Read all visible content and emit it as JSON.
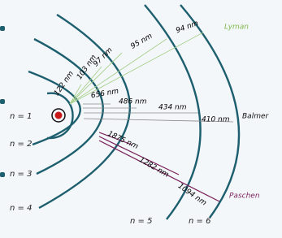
{
  "levels": [
    "n = 1",
    "n = 2",
    "n = 3",
    "n = 4",
    "n = 5",
    "n = 6"
  ],
  "series": [
    {
      "name": "Lyman",
      "lines": [
        "122 nm",
        "103 nm",
        "97 nm",
        "95 nm",
        "94 nm"
      ]
    },
    {
      "name": "Balmer",
      "lines": [
        "656 nm",
        "486 nm",
        "434 nm",
        "410 nm"
      ]
    },
    {
      "name": "Paschen",
      "lines": [
        "1875 nm",
        "1282 nm",
        "1094 nm"
      ]
    }
  ]
}
